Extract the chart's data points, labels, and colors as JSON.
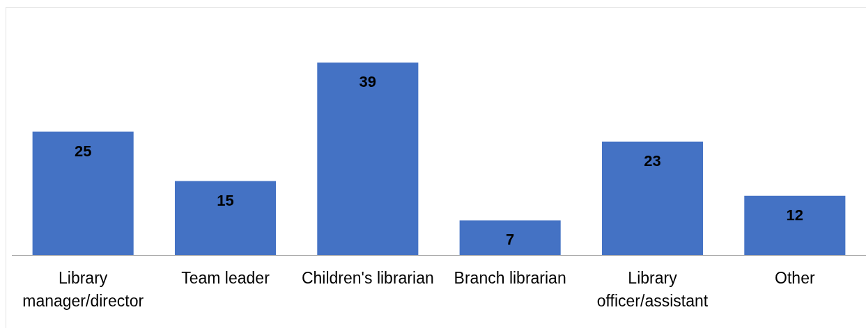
{
  "chart_data": {
    "type": "bar",
    "categories": [
      "Library manager/director",
      "Team leader",
      "Children's librarian",
      "Branch librarian",
      "Library officer/assistant",
      "Other"
    ],
    "values": [
      25,
      15,
      39,
      7,
      23,
      12
    ],
    "color": "#4472c4",
    "data_labels": true,
    "tick_labels": "x"
  }
}
